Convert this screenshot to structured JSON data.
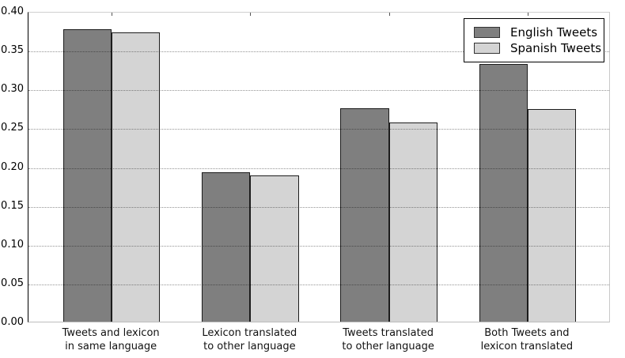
{
  "chart_data": {
    "type": "bar",
    "title": "",
    "xlabel": "",
    "ylabel": "",
    "categories": [
      "Tweets and lexicon\nin same language",
      "Lexicon translated\nto other language",
      "Tweets translated\nto other language",
      "Both Tweets and\nlexicon translated"
    ],
    "series": [
      {
        "name": "English Tweets",
        "color": "#7f7f7f",
        "values": [
          0.377,
          0.192,
          0.275,
          0.332
        ]
      },
      {
        "name": "Spanish Tweets",
        "color": "#d4d4d4",
        "values": [
          0.373,
          0.188,
          0.256,
          0.274
        ]
      }
    ],
    "ylim": [
      0.0,
      0.4
    ],
    "ytick_step": 0.05,
    "ytick_labels": [
      "0.00",
      "0.05",
      "0.10",
      "0.15",
      "0.20",
      "0.25",
      "0.30",
      "0.35",
      "0.40"
    ],
    "bar_edge_color": "#1c1c1c",
    "grid": "horizontal-dotted",
    "legend_position": "upper-right"
  }
}
